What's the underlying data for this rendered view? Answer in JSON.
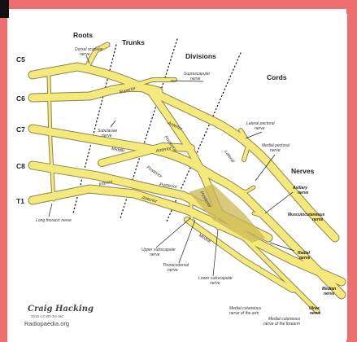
{
  "headers": {
    "roots": "Roots",
    "trunks": "Trunks",
    "divisions": "Divisions",
    "cords": "Cords",
    "nerves": "Nerves"
  },
  "roots": [
    "C5",
    "C6",
    "C7",
    "C8",
    "T1"
  ],
  "trunks": {
    "superior": "Superior",
    "middle": "Middle",
    "inferior": "Inferior"
  },
  "divisions": {
    "anterior": "Anterior",
    "posterior": "Posterior"
  },
  "cords": {
    "lateral": "Lateral",
    "posterior": "Posterior",
    "medial": "Medial"
  },
  "branch_labels": {
    "dorsal_scapular_1": "Dorsal scapular",
    "dorsal_scapular_2": "nerve",
    "suprascapular_1": "Suprascapular",
    "suprascapular_2": "nerve",
    "subclavian_1": "Subclavian",
    "subclavian_2": "nerve",
    "lateral_pectoral_1": "Lateral pectoral",
    "lateral_pectoral_2": "nerve",
    "medial_pectoral_1": "Medial pectoral",
    "medial_pectoral_2": "nerve",
    "long_thoracic": "Long thoracic nerve",
    "upper_subscapular_1": "Upper subscapular",
    "upper_subscapular_2": "nerve",
    "thoracodorsal_1": "Thoracodorsal",
    "thoracodorsal_2": "nerve",
    "lower_subscapular_1": "Lower subscapular",
    "lower_subscapular_2": "nerve",
    "medial_cutaneous_arm_1": "Medial cutaneous",
    "medial_cutaneous_arm_2": "nerve of the arm",
    "medial_cutaneous_forearm_1": "Medial cutaneous",
    "medial_cutaneous_forearm_2": "nerve of the forearm"
  },
  "terminal_nerves": {
    "axillary_1": "Axillary",
    "axillary_2": "nerve",
    "musculocutaneous_1": "Musculocutaneous",
    "musculocutaneous_2": "nerve",
    "radial_1": "Radial",
    "radial_2": "nerve",
    "median_1": "Median",
    "median_2": "nerve",
    "ulnar_1": "Ulnar",
    "ulnar_2": "nerve"
  },
  "credit": {
    "signature": "Craig Hacking",
    "license": "2015 CC-BY-SA-NC",
    "source": "Radiopaedia.org"
  },
  "colors": {
    "frame": "#ee6f6f",
    "nerve": "#f4e97a",
    "nerve_outline": "#8a8450",
    "shade": "#c9b856"
  }
}
